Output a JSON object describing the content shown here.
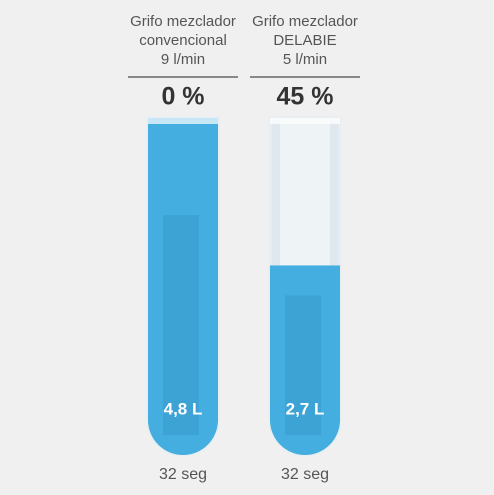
{
  "tubes": [
    {
      "name_lines": [
        "Grifo mezclador",
        "convencional",
        "9 l/min"
      ],
      "saving": "0 %",
      "volume": 4.8,
      "volume_label": "4,8 L",
      "time": "32 seg"
    },
    {
      "name_lines": [
        "Grifo mezclador",
        "DELABIE",
        "5 l/min"
      ],
      "saving": "45 %",
      "volume": 2.7,
      "volume_label": "2,7 L",
      "time": "32 seg"
    }
  ]
}
